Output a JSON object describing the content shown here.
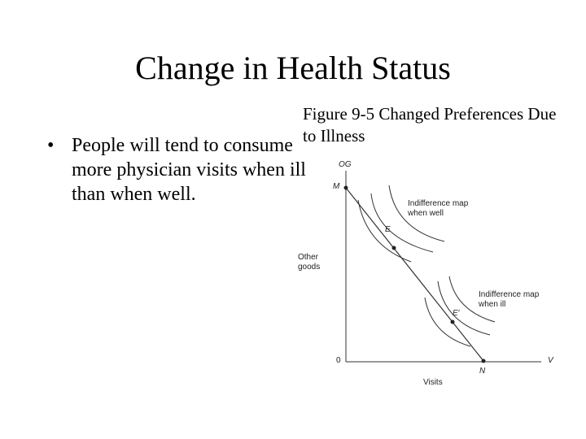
{
  "title": "Change in Health Status",
  "bullets": [
    "People will tend to consume more physician visits when ill than when well."
  ],
  "figure": {
    "caption": "Figure 9-5 Changed Preferences Due to Illness",
    "y_axis_end": "OG",
    "y_axis_label": "Other goods",
    "x_axis_end": "V",
    "x_axis_label": "Visits",
    "origin": "0",
    "points": [
      "M",
      "E",
      "E′",
      "N"
    ],
    "well_label": "Indifference map when well",
    "ill_label": "Indifference map when ill"
  }
}
